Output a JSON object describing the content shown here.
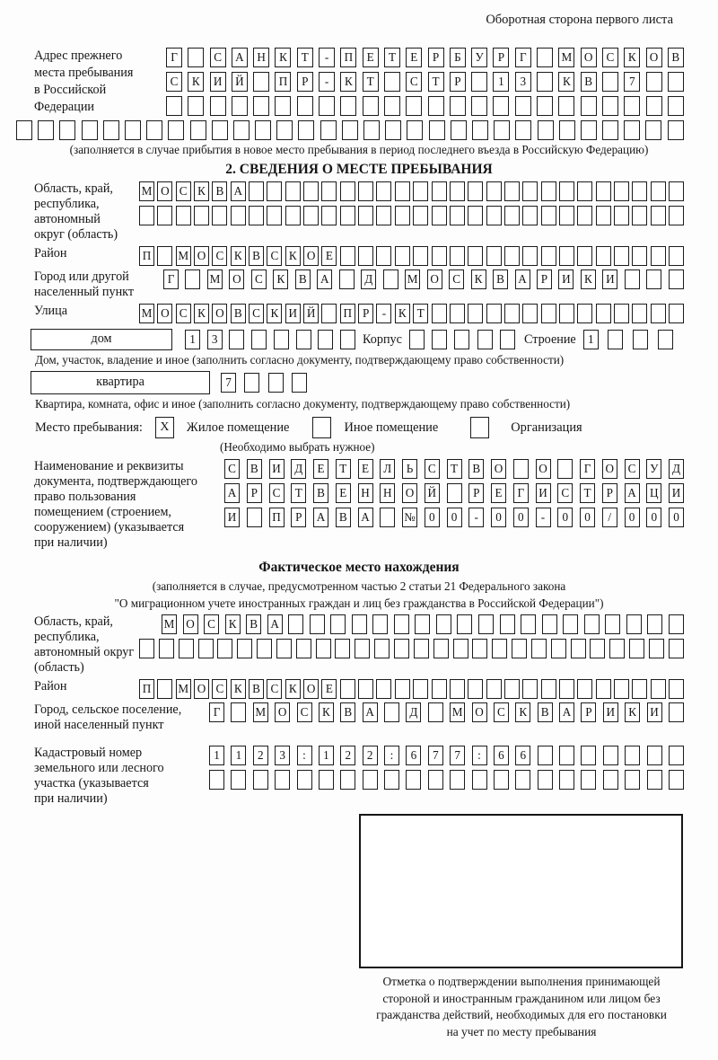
{
  "header": {
    "title": "Оборотная сторона первого листа"
  },
  "prev_address": {
    "label_lines": [
      "Адрес прежнего",
      "места пребывания",
      "в Российской",
      "Федерации"
    ],
    "row1": "Г САНКТ-ПЕТЕРБУРГ МОСКОВ",
    "row2": "СКИЙ ПР-КТ СТР 13 КВ 7",
    "row3": "",
    "row4": "",
    "note": "(заполняется в случае прибытия в новое место пребывания в период последнего въезда в Российскую Федерацию)"
  },
  "section2": {
    "title": "2. СВЕДЕНИЯ О МЕСТЕ ПРЕБЫВАНИЯ",
    "region": {
      "label_lines": [
        "Область, край,",
        "республика,",
        "автономный",
        "округ (область)"
      ],
      "row1": "МОСКВА",
      "row2": ""
    },
    "district": {
      "label": "Район",
      "row": "П МОСКВСКОЕ"
    },
    "city": {
      "label_lines": [
        "Город или другой",
        "населенный пункт"
      ],
      "row": "Г МОСКВА Д МОСКВАРИКИ"
    },
    "street": {
      "label": "Улица",
      "row": "МОСКОВСКИЙ ПР-КТ"
    },
    "house": {
      "box_label": "дом",
      "cells": "13",
      "korpus_label": "Корпус",
      "korpus_cells": "",
      "stroenie_label": "Строение",
      "stroenie_cells": "1",
      "note": "Дом, участок, владение и иное (заполнить согласно документу, подтверждающему право собственности)"
    },
    "apartment": {
      "box_label": "квартира",
      "cells": "7",
      "note": "Квартира, комната, офис и иное (заполнить согласно документу, подтверждающему право собственности)"
    },
    "stay_type": {
      "label": "Место пребывания:",
      "options": [
        {
          "label": "Жилое помещение",
          "checked": "X"
        },
        {
          "label": "Иное помещение",
          "checked": ""
        },
        {
          "label": "Организация",
          "checked": ""
        }
      ],
      "note": "(Необходимо выбрать нужное)"
    },
    "document": {
      "label_lines": [
        "Наименование и реквизиты",
        "документа, подтверждающего",
        "право пользования",
        "помещением (строением,",
        "сооружением) (указывается",
        "при наличии)"
      ],
      "row1": "СВИДЕТЕЛЬСТВО О ГОСУД",
      "row2": "АРСТВЕННОЙ РЕГИСТРАЦИ",
      "row3": "И ПРАВА №00-00-00/000"
    }
  },
  "actual_location": {
    "title": "Фактическое место нахождения",
    "note_line1": "(заполняется в случае, предусмотренном частью 2 статьи 21 Федерального закона",
    "note_line2": "\"О миграционном учете иностранных граждан и лиц без гражданства в Российской Федерации\")",
    "region": {
      "label_lines": [
        "Область, край,",
        "республика,",
        "автономный округ",
        "(область)"
      ],
      "row1": "МОСКВА",
      "row2": ""
    },
    "district": {
      "label": "Район",
      "row": "П МОСКВСКОЕ"
    },
    "city": {
      "label_lines": [
        "Город, сельское поселение,",
        "иной населенный пункт"
      ],
      "row": "Г МОСКВА Д МОСКВАРИКИ"
    },
    "cadastral": {
      "label_lines": [
        "Кадастровый номер",
        "земельного или лесного",
        "участка (указывается",
        "при наличии)"
      ],
      "row1": "1123:122:677:66",
      "row2": ""
    }
  },
  "stamp": {
    "caption_lines": [
      "Отметка о подтверждении выполнения принимающей",
      "стороной и иностранным гражданином или лицом без",
      "гражданства действий, необходимых для его постановки",
      "на учет по месту пребывания"
    ]
  }
}
